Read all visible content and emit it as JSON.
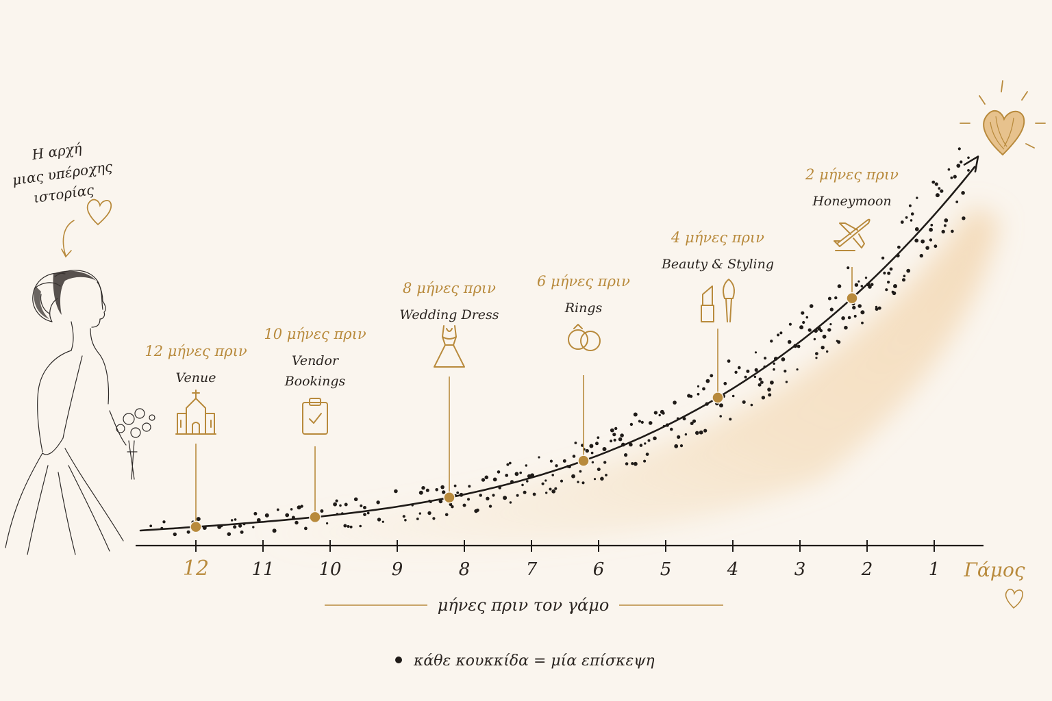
{
  "intro": {
    "line1": "Η αρχή",
    "line2": "μιας υπέροχης",
    "line3": "ιστορίας"
  },
  "colors": {
    "accent": "#b88a3c",
    "ink": "#2a2420",
    "background": "#faf5ee"
  },
  "icons": [
    "heart-icon",
    "church-icon",
    "clipboard-icon",
    "dress-icon",
    "rings-icon",
    "lipstick-icon",
    "brush-icon",
    "airplane-icon",
    "arrow-icon"
  ],
  "chart_data": {
    "type": "scatter",
    "x_ticks": [
      "12",
      "11",
      "10",
      "9",
      "8",
      "7",
      "6",
      "5",
      "4",
      "3",
      "2",
      "1"
    ],
    "end_label": "Γάμος",
    "xlabel": "μήνες πριν τον γάμο",
    "legend": "κάθε κουκκίδα = μία επίσκεψη",
    "milestones": [
      {
        "months": 12,
        "when": "12 μήνες πριν",
        "label": [
          "Venue"
        ],
        "icon": "church-icon"
      },
      {
        "months": 10,
        "when": "10 μήνες πριν",
        "label": [
          "Vendor",
          "Bookings"
        ],
        "icon": "clipboard-icon"
      },
      {
        "months": 8,
        "when": "8 μήνες πριν",
        "label": [
          "Wedding Dress"
        ],
        "icon": "dress-icon"
      },
      {
        "months": 6,
        "when": "6 μήνες πριν",
        "label": [
          "Rings"
        ],
        "icon": "rings-icon"
      },
      {
        "months": 4,
        "when": "4 μήνες πριν",
        "label": [
          "Beauty & Styling"
        ],
        "icon": "beauty-icon"
      },
      {
        "months": 2,
        "when": "2 μήνες πριν",
        "label": [
          "Honeymoon"
        ],
        "icon": "airplane-icon"
      }
    ]
  }
}
